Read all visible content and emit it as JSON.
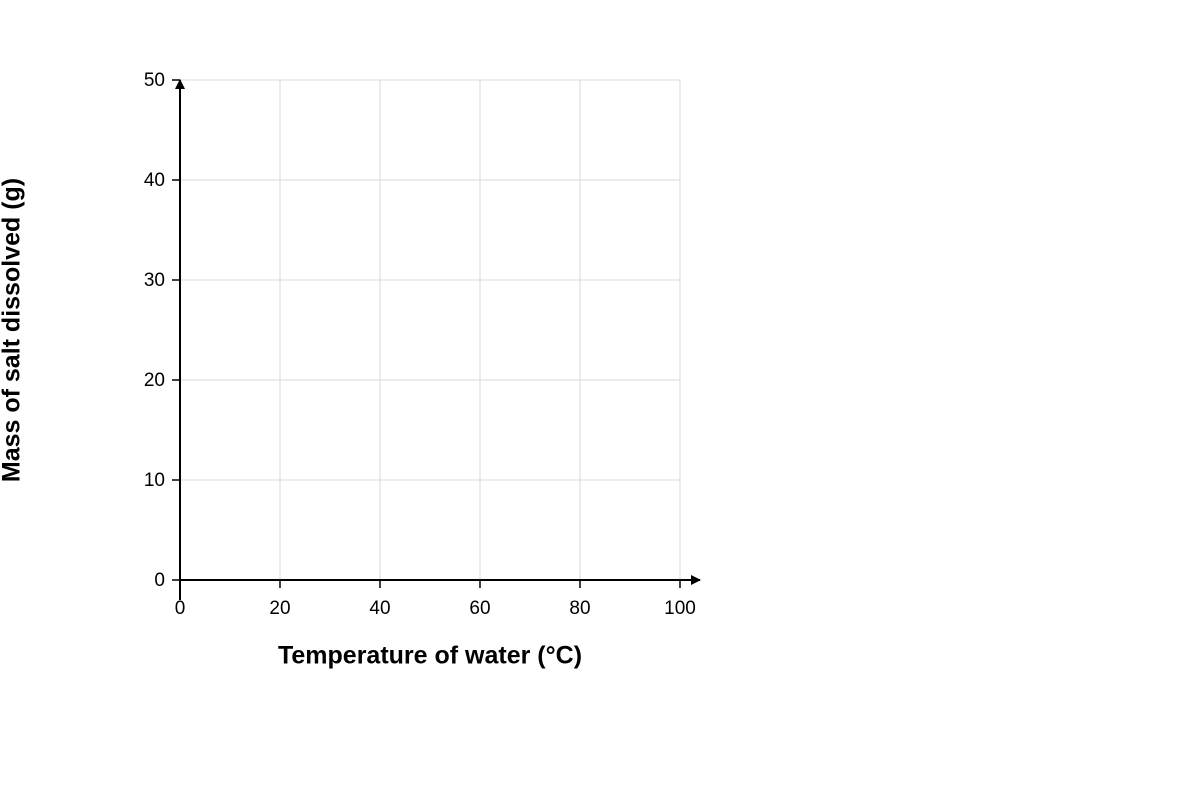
{
  "chart_data": {
    "type": "scatter",
    "xlabel": "Temperature of water (°C)",
    "ylabel": "Mass of salt dissolved (g)",
    "xlim": [
      0,
      100
    ],
    "xticks": [
      0,
      20,
      40,
      60,
      80,
      100
    ],
    "ylim": [
      0,
      50
    ],
    "yticks": [
      0,
      10,
      20,
      30,
      40,
      50
    ],
    "grid": true,
    "grid_color": "#d9d9d9",
    "axis_color": "#000000"
  }
}
